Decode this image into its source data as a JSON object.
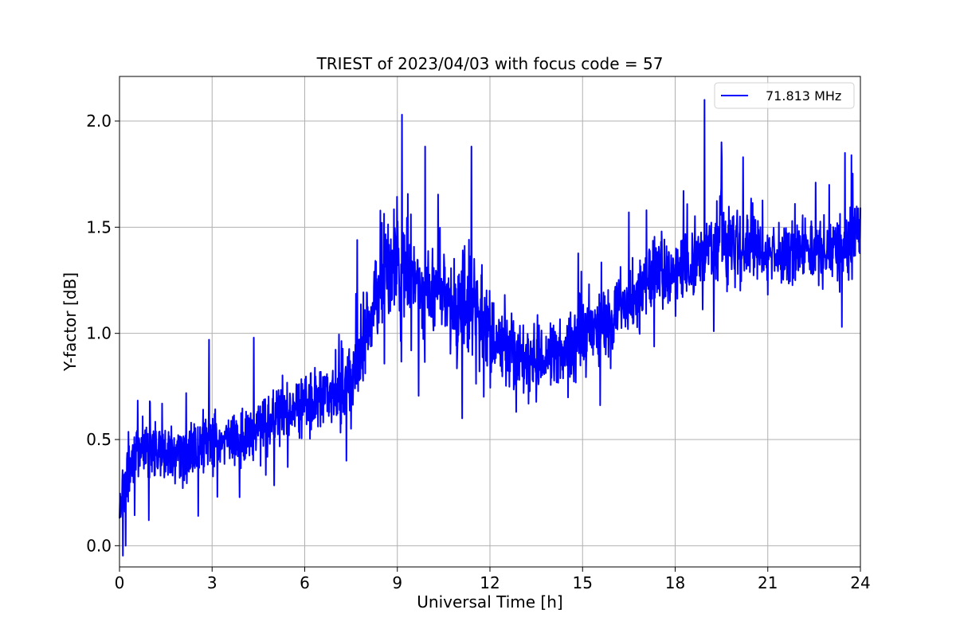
{
  "chart_data": {
    "type": "line",
    "title": "TRIEST of 2023/04/03 with focus code = 57",
    "xlabel": "Universal Time [h]",
    "ylabel": "Y-factor [dB]",
    "xlim": [
      0,
      24
    ],
    "ylim": [
      -0.1,
      2.21
    ],
    "xticks": [
      0,
      3,
      6,
      9,
      12,
      15,
      18,
      21,
      24
    ],
    "xtick_labels": [
      "0",
      "3",
      "6",
      "9",
      "12",
      "15",
      "18",
      "21",
      "24"
    ],
    "yticks": [
      0.0,
      0.5,
      1.0,
      1.5,
      2.0
    ],
    "ytick_labels": [
      "0.0",
      "0.5",
      "1.0",
      "1.5",
      "2.0"
    ],
    "grid": true,
    "legend_position": "top-right",
    "series": [
      {
        "name": "71.813 MHz",
        "color": "#0000ff",
        "x": [
          0,
          0.5,
          1,
          1.5,
          2,
          2.5,
          3,
          3.5,
          4,
          4.5,
          5,
          5.5,
          6,
          6.5,
          7,
          7.5,
          8,
          8.5,
          9,
          9.5,
          10,
          10.5,
          11,
          11.5,
          12,
          12.5,
          13,
          13.5,
          14,
          14.5,
          15,
          15.5,
          16,
          16.5,
          17,
          17.5,
          18,
          18.5,
          19,
          19.5,
          20,
          20.5,
          21,
          21.5,
          22,
          22.5,
          23,
          23.5,
          24
        ],
        "y": [
          0.22,
          0.45,
          0.45,
          0.42,
          0.44,
          0.46,
          0.48,
          0.5,
          0.52,
          0.55,
          0.62,
          0.65,
          0.68,
          0.7,
          0.72,
          0.78,
          1.0,
          1.3,
          1.35,
          1.25,
          1.15,
          1.2,
          1.1,
          1.15,
          1.0,
          0.92,
          0.88,
          0.88,
          0.9,
          0.95,
          1.0,
          1.02,
          1.05,
          1.15,
          1.22,
          1.28,
          1.3,
          1.32,
          1.38,
          1.42,
          1.45,
          1.4,
          1.38,
          1.36,
          1.38,
          1.4,
          1.38,
          1.4,
          1.45
        ],
        "noise_amplitude": [
          0.14,
          0.16,
          0.16,
          0.15,
          0.15,
          0.15,
          0.16,
          0.16,
          0.16,
          0.16,
          0.16,
          0.17,
          0.18,
          0.18,
          0.18,
          0.2,
          0.22,
          0.28,
          0.3,
          0.28,
          0.28,
          0.28,
          0.3,
          0.28,
          0.24,
          0.2,
          0.2,
          0.2,
          0.2,
          0.2,
          0.2,
          0.2,
          0.2,
          0.2,
          0.2,
          0.2,
          0.2,
          0.2,
          0.22,
          0.24,
          0.22,
          0.18,
          0.16,
          0.16,
          0.16,
          0.18,
          0.2,
          0.2,
          0.2
        ],
        "peaks": [
          {
            "x": 2.9,
            "y": 0.97
          },
          {
            "x": 4.35,
            "y": 0.98
          },
          {
            "x": 7.7,
            "y": 1.44
          },
          {
            "x": 9.15,
            "y": 2.03
          },
          {
            "x": 9.9,
            "y": 1.88
          },
          {
            "x": 11.4,
            "y": 1.88
          },
          {
            "x": 16.5,
            "y": 1.57
          },
          {
            "x": 18.95,
            "y": 2.1
          },
          {
            "x": 19.5,
            "y": 1.9
          },
          {
            "x": 20.2,
            "y": 1.83
          },
          {
            "x": 23.5,
            "y": 1.85
          }
        ],
        "dips": [
          {
            "x": 0.2,
            "y": 0.0
          },
          {
            "x": 0.95,
            "y": 0.12
          },
          {
            "x": 2.55,
            "y": 0.14
          },
          {
            "x": 5.45,
            "y": 0.37
          },
          {
            "x": 7.35,
            "y": 0.4
          },
          {
            "x": 11.1,
            "y": 0.6
          },
          {
            "x": 12.85,
            "y": 0.63
          },
          {
            "x": 19.25,
            "y": 1.01
          },
          {
            "x": 23.4,
            "y": 1.03
          }
        ]
      }
    ]
  }
}
